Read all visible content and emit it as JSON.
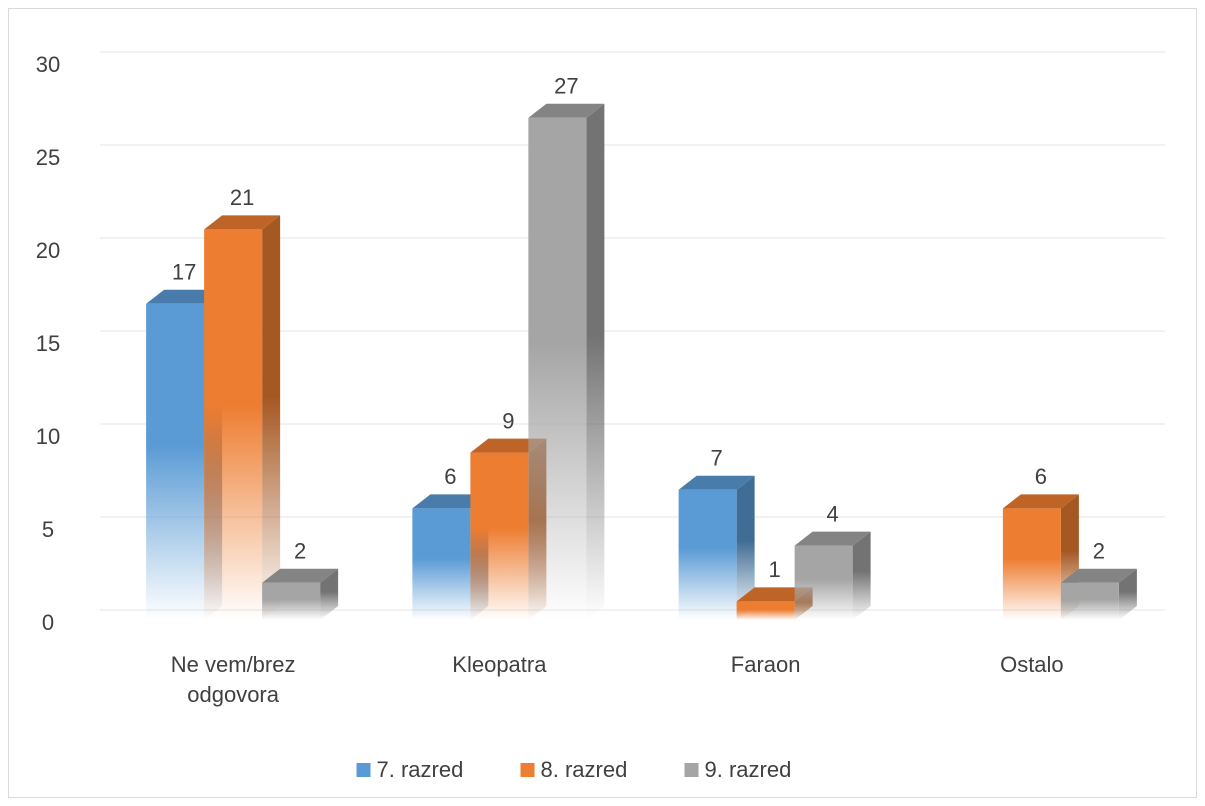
{
  "chart_data": {
    "type": "bar3d",
    "categories": [
      "Ne vem/brez odgovora",
      "Kleopatra",
      "Faraon",
      "Ostalo"
    ],
    "series": [
      {
        "name": "7. razred",
        "color": "#5b9bd5",
        "values": [
          17,
          6,
          7,
          null
        ]
      },
      {
        "name": "8. razred",
        "color": "#ed7d31",
        "values": [
          21,
          9,
          1,
          6
        ]
      },
      {
        "name": "9. razred",
        "color": "#a5a5a5",
        "values": [
          2,
          27,
          4,
          2
        ]
      }
    ],
    "ylim": [
      0,
      30
    ],
    "yticks": [
      0,
      5,
      10,
      15,
      20,
      25,
      30
    ],
    "grid": true,
    "legend": "bottom"
  }
}
